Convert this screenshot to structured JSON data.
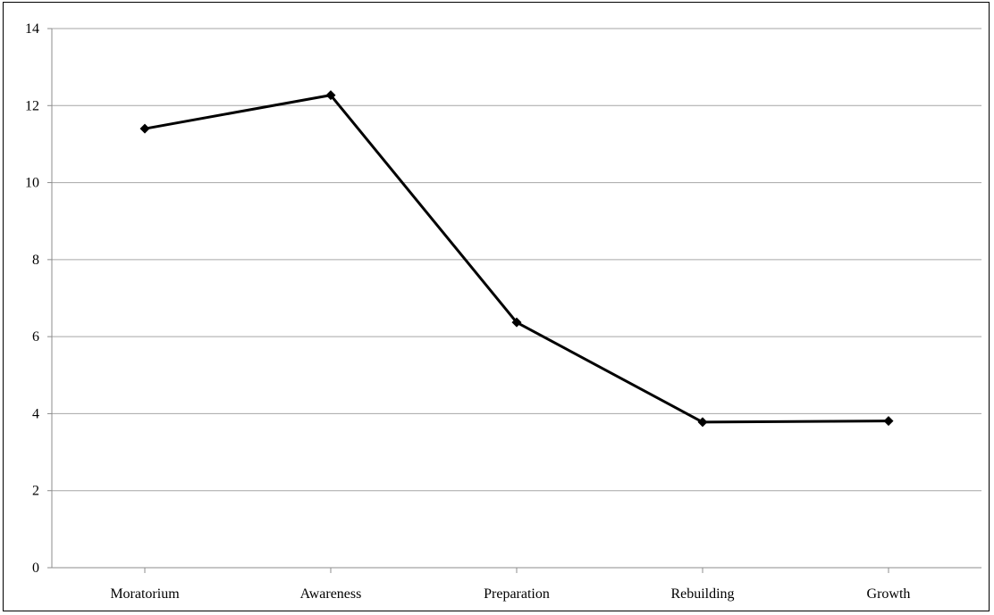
{
  "chart_data": {
    "type": "line",
    "title": "",
    "xlabel": "",
    "ylabel": "",
    "categories": [
      "Moratorium",
      "Awareness",
      "Preparation",
      "Rebuilding",
      "Growth"
    ],
    "series": [
      {
        "values": [
          11.4,
          12.27,
          6.37,
          3.78,
          3.81
        ]
      }
    ],
    "ylim": [
      0,
      14
    ],
    "yticks": [
      0,
      2,
      4,
      6,
      8,
      10,
      12,
      14
    ],
    "grid": "horizontal",
    "legend": "none",
    "marker": "diamond",
    "colors": {
      "line": "#000000",
      "grid": "#a6a6a6",
      "axis": "#8c8c8c",
      "text": "#000000"
    }
  }
}
